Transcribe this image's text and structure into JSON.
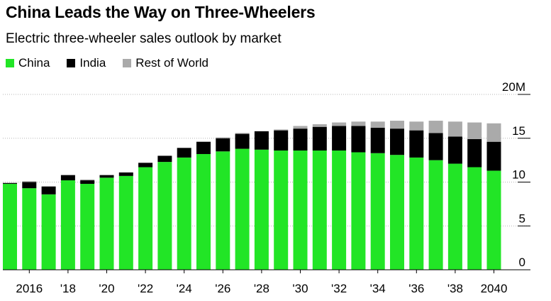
{
  "title": "China Leads the Way on Three-Wheelers",
  "subtitle": "Electric three-wheeler sales outlook by market",
  "colors": {
    "china": "#22e526",
    "india": "#000000",
    "row": "#aaaaaa"
  },
  "chart_data": {
    "type": "bar",
    "stacked": true,
    "ylim": [
      0,
      20
    ],
    "y_unit": "M",
    "y_ticks": [
      "0",
      "5",
      "10",
      "15",
      "20M"
    ],
    "x_ticks": [
      "2016",
      "'18",
      "'20",
      "'22",
      "'24",
      "'26",
      "'28",
      "'30",
      "'32",
      "'34",
      "'36",
      "'38",
      "2040"
    ],
    "categories": [
      "2015",
      "2016",
      "2017",
      "2018",
      "2019",
      "2020",
      "2021",
      "2022",
      "2023",
      "2024",
      "2025",
      "2026",
      "2027",
      "2028",
      "2029",
      "2030",
      "2031",
      "2032",
      "2033",
      "2034",
      "2035",
      "2036",
      "2037",
      "2038",
      "2039",
      "2040"
    ],
    "series": [
      {
        "name": "China",
        "values": [
          9.8,
          9.3,
          8.6,
          10.2,
          9.8,
          10.5,
          10.7,
          11.7,
          12.3,
          12.8,
          13.2,
          13.5,
          13.8,
          13.7,
          13.6,
          13.6,
          13.6,
          13.6,
          13.4,
          13.3,
          13.1,
          12.8,
          12.5,
          12.1,
          11.7,
          11.3
        ]
      },
      {
        "name": "India",
        "values": [
          0.1,
          0.7,
          0.9,
          0.6,
          0.4,
          0.3,
          0.4,
          0.5,
          0.7,
          1.1,
          1.4,
          1.5,
          1.7,
          2.1,
          2.3,
          2.5,
          2.7,
          2.8,
          3.0,
          2.9,
          3.0,
          3.1,
          3.1,
          3.1,
          3.2,
          3.3
        ]
      },
      {
        "name": "Rest of World",
        "values": [
          0.0,
          0.1,
          0.0,
          0.0,
          0.1,
          0.0,
          0.0,
          0.0,
          0.0,
          0.0,
          0.0,
          0.1,
          0.1,
          0.0,
          0.1,
          0.3,
          0.3,
          0.4,
          0.5,
          0.7,
          0.9,
          1.0,
          1.4,
          1.7,
          1.9,
          2.1
        ]
      }
    ]
  }
}
